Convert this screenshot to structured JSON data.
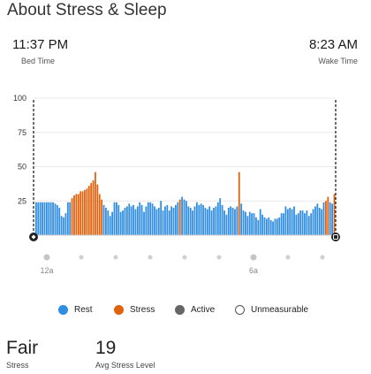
{
  "header": {
    "title": "About Stress & Sleep"
  },
  "times": {
    "bed": {
      "value": "11:37 PM",
      "label": "Bed Time"
    },
    "wake": {
      "value": "8:23 AM",
      "label": "Wake Time"
    }
  },
  "legend": [
    {
      "label": "Rest",
      "color": "#2f8de4",
      "icon": "filled-dot"
    },
    {
      "label": "Stress",
      "color": "#e0620d",
      "icon": "filled-dot"
    },
    {
      "label": "Active",
      "color": "#666666",
      "icon": "filled-dot"
    },
    {
      "label": "Unmeasurable",
      "color": "#ffffff",
      "icon": "hollow-dot"
    }
  ],
  "summary": {
    "stress": {
      "value": "Fair",
      "label": "Stress"
    },
    "avg": {
      "value": "19",
      "label": "Avg Stress Level"
    }
  },
  "colors": {
    "rest": "#2f8de4",
    "stress": "#e0620d",
    "grid": "#e8e8e8",
    "boundary": "#222222"
  },
  "chart_data": {
    "type": "bar",
    "ylim": [
      0,
      100
    ],
    "yticks": [
      "100",
      "75",
      "50",
      "25"
    ],
    "ytick_values": [
      100,
      75,
      50,
      25
    ],
    "xticks": [
      {
        "label": "12a"
      },
      {
        "label": ""
      },
      {
        "label": ""
      },
      {
        "label": ""
      },
      {
        "label": ""
      },
      {
        "label": ""
      },
      {
        "label": "6a"
      },
      {
        "label": ""
      },
      {
        "label": ""
      }
    ],
    "series": [
      {
        "values": [
          24,
          24,
          24,
          24,
          24,
          24,
          24,
          24,
          24,
          23,
          22,
          20,
          14,
          13,
          16,
          24,
          24,
          27,
          29,
          30,
          30,
          32,
          32,
          33,
          34,
          36,
          38,
          40,
          46,
          37,
          30,
          26,
          22,
          20,
          18,
          14,
          17,
          24,
          24,
          22,
          17,
          18,
          20,
          21,
          23,
          21,
          22,
          19,
          21,
          24,
          22,
          17,
          21,
          24,
          24,
          23,
          21,
          19,
          20,
          25,
          18,
          21,
          22,
          18,
          21,
          20,
          22,
          24,
          26,
          28,
          26,
          25,
          21,
          20,
          18,
          21,
          24,
          22,
          23,
          22,
          20,
          19,
          21,
          18,
          20,
          21,
          24,
          27,
          22,
          18,
          15,
          20,
          21,
          20,
          19,
          21,
          46,
          23,
          18,
          17,
          14,
          17,
          16,
          16,
          13,
          11,
          19,
          15,
          13,
          12,
          13,
          11,
          10,
          12,
          12,
          13,
          16,
          16,
          21,
          19,
          20,
          19,
          21,
          15,
          16,
          18,
          18,
          16,
          18,
          14,
          16,
          19,
          21,
          23,
          20,
          19,
          24,
          25,
          28,
          24,
          23,
          30
        ],
        "states": [
          "R",
          "R",
          "R",
          "R",
          "R",
          "R",
          "R",
          "R",
          "R",
          "R",
          "R",
          "R",
          "R",
          "R",
          "R",
          "R",
          "R",
          "S",
          "S",
          "S",
          "S",
          "S",
          "S",
          "S",
          "S",
          "S",
          "S",
          "S",
          "S",
          "S",
          "S",
          "S",
          "R",
          "R",
          "R",
          "R",
          "R",
          "R",
          "R",
          "R",
          "R",
          "R",
          "R",
          "R",
          "R",
          "R",
          "R",
          "R",
          "R",
          "R",
          "R",
          "R",
          "R",
          "R",
          "R",
          "R",
          "R",
          "R",
          "R",
          "R",
          "R",
          "R",
          "R",
          "R",
          "R",
          "R",
          "R",
          "R",
          "S",
          "R",
          "R",
          "R",
          "R",
          "R",
          "R",
          "R",
          "R",
          "R",
          "R",
          "R",
          "R",
          "R",
          "R",
          "R",
          "R",
          "R",
          "R",
          "R",
          "R",
          "R",
          "R",
          "R",
          "R",
          "R",
          "R",
          "R",
          "S",
          "R",
          "R",
          "R",
          "R",
          "R",
          "R",
          "R",
          "R",
          "R",
          "R",
          "R",
          "R",
          "R",
          "R",
          "R",
          "R",
          "R",
          "R",
          "R",
          "R",
          "R",
          "R",
          "R",
          "R",
          "R",
          "R",
          "R",
          "R",
          "R",
          "R",
          "R",
          "R",
          "R",
          "R",
          "R",
          "R",
          "R",
          "R",
          "R",
          "R",
          "S",
          "S",
          "R",
          "R",
          "S"
        ]
      }
    ]
  }
}
